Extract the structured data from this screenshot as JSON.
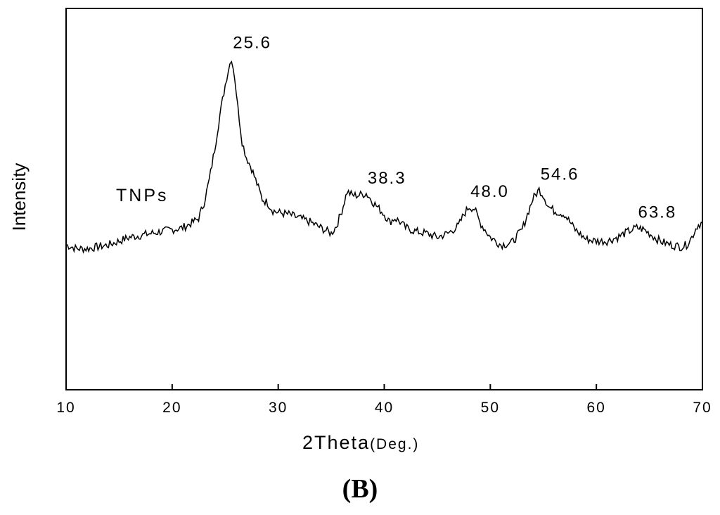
{
  "panel_label": "(B)",
  "chart_data": {
    "type": "line",
    "xlabel_main": "2Theta",
    "xlabel_unit": "(Deg.)",
    "ylabel": "Intensity",
    "xlim": [
      10,
      70
    ],
    "ylim": [
      0,
      1
    ],
    "grid": false,
    "x_ticks": [
      "10",
      "20",
      "30",
      "40",
      "50",
      "60",
      "70"
    ],
    "series": [
      {
        "name": "TNPs",
        "x": [
          10,
          11,
          12,
          13,
          14,
          15,
          16,
          17,
          18,
          19,
          20,
          21,
          22,
          22.5,
          23,
          23.5,
          24,
          24.5,
          25,
          25.3,
          25.6,
          25.9,
          26.2,
          26.6,
          27,
          27.5,
          28,
          28.5,
          29,
          29.5,
          30,
          31,
          32,
          33,
          34,
          35,
          35.5,
          36,
          36.5,
          37,
          37.5,
          38.3,
          39,
          40,
          40.5,
          41,
          41.5,
          42,
          43,
          44,
          45,
          46,
          47,
          47.5,
          48,
          48.5,
          49,
          50,
          51,
          52,
          53,
          53.5,
          54,
          54.6,
          55,
          55.5,
          56,
          57,
          58,
          59,
          60,
          61,
          62,
          63,
          63.8,
          64.5,
          65,
          66,
          67,
          68,
          68.5,
          69,
          69.5,
          70
        ],
        "y": [
          0.38,
          0.37,
          0.37,
          0.375,
          0.38,
          0.39,
          0.4,
          0.405,
          0.41,
          0.415,
          0.42,
          0.425,
          0.44,
          0.45,
          0.49,
          0.55,
          0.63,
          0.72,
          0.8,
          0.84,
          0.87,
          0.82,
          0.74,
          0.65,
          0.61,
          0.58,
          0.54,
          0.5,
          0.49,
          0.47,
          0.465,
          0.46,
          0.45,
          0.44,
          0.425,
          0.41,
          0.43,
          0.47,
          0.52,
          0.51,
          0.51,
          0.515,
          0.49,
          0.46,
          0.44,
          0.45,
          0.44,
          0.425,
          0.415,
          0.41,
          0.4,
          0.41,
          0.43,
          0.46,
          0.48,
          0.475,
          0.44,
          0.4,
          0.38,
          0.385,
          0.42,
          0.46,
          0.5,
          0.525,
          0.51,
          0.48,
          0.47,
          0.46,
          0.42,
          0.395,
          0.39,
          0.39,
          0.4,
          0.415,
          0.425,
          0.42,
          0.41,
          0.39,
          0.38,
          0.375,
          0.38,
          0.4,
          0.43,
          0.44
        ]
      }
    ],
    "peak_labels": [
      {
        "x": 25.6,
        "text": "25.6"
      },
      {
        "x": 38.3,
        "text": "38.3"
      },
      {
        "x": 48.0,
        "text": "48.0"
      },
      {
        "x": 54.6,
        "text": "54.6"
      },
      {
        "x": 63.8,
        "text": "63.8"
      }
    ],
    "series_label": "TNPs"
  }
}
